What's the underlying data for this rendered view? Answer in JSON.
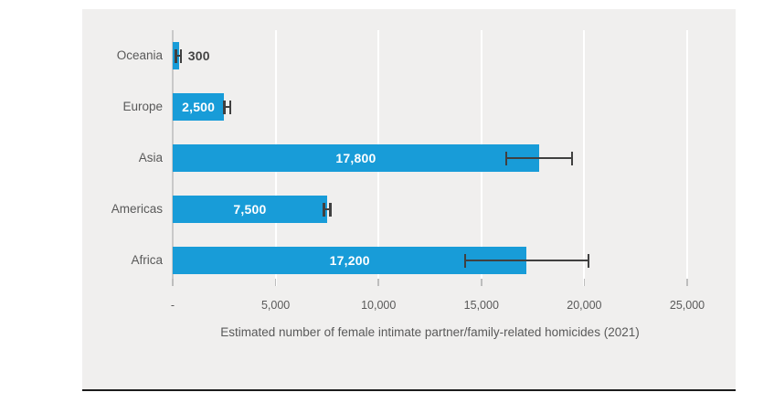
{
  "chart_data": {
    "type": "bar",
    "orientation": "horizontal",
    "xlabel": "Estimated number of female intimate partner/family-related homicides (2021)",
    "categories": [
      "Oceania",
      "Europe",
      "Asia",
      "Americas",
      "Africa"
    ],
    "values": [
      300,
      2500,
      17800,
      7500,
      17200
    ],
    "value_labels": [
      "300",
      "2,500",
      "17,800",
      "7,500",
      "17,200"
    ],
    "error_bars": {
      "low": [
        150,
        2500,
        16200,
        7350,
        14200
      ],
      "high": [
        400,
        2800,
        19400,
        7650,
        20200
      ]
    },
    "xlim": [
      0,
      25000
    ],
    "x_ticks": [
      0,
      5000,
      10000,
      15000,
      20000,
      25000
    ],
    "x_tick_labels": [
      "-",
      "5,000",
      "10,000",
      "15,000",
      "20,000",
      "25,000"
    ],
    "grid": true,
    "legend": false
  },
  "colors": {
    "bar": "#189cd8",
    "error_bar": "#404040",
    "panel_background": "#f0efee",
    "page_background": "#ffffff",
    "gridline": "#ffffff",
    "zero_line": "#c9c9c9",
    "text": "#595959",
    "value_label_inside": "#ffffff",
    "value_label_outside": "#444444",
    "baseline": "#1c1c1c"
  }
}
